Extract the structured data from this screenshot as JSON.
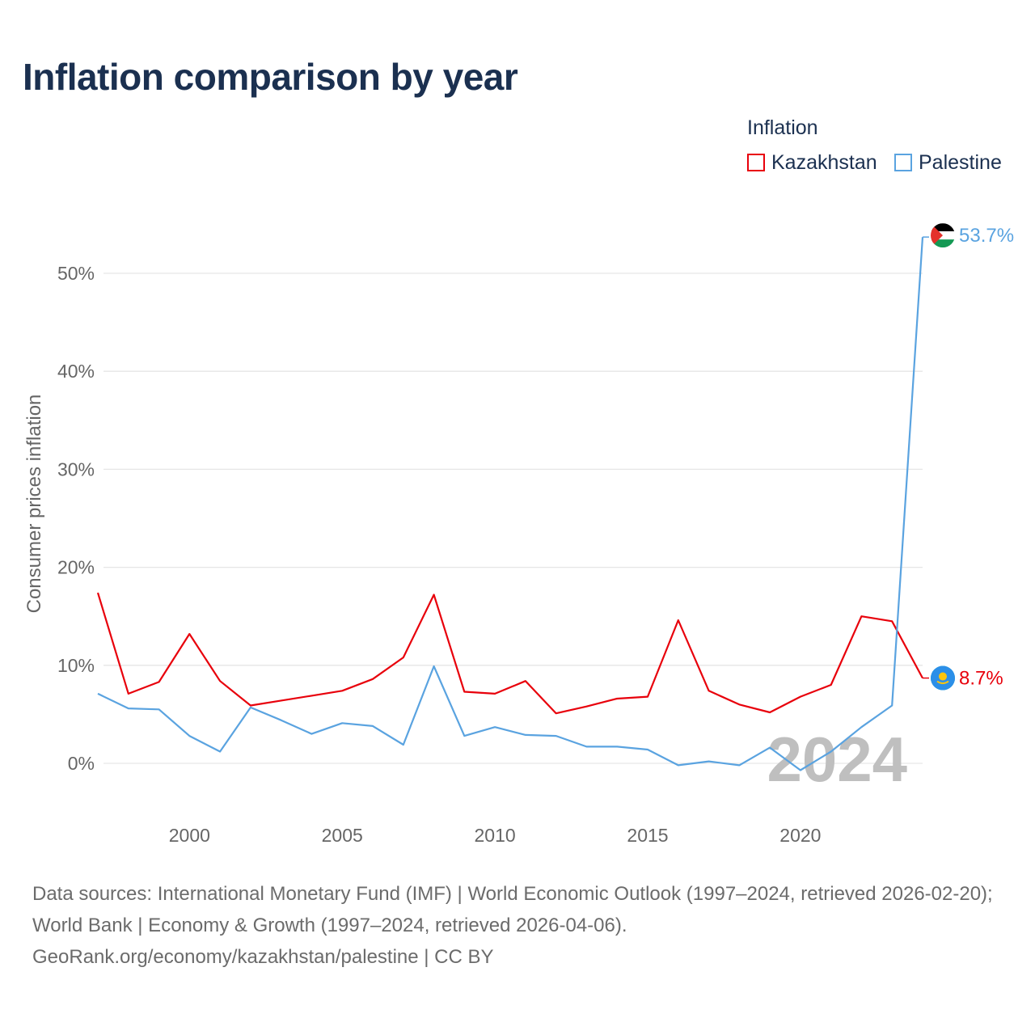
{
  "title": "Inflation comparison by year",
  "legend": {
    "title": "Inflation",
    "items": [
      {
        "name": "Kazakhstan",
        "color": "#e8000b"
      },
      {
        "name": "Palestine",
        "color": "#5aa3e0"
      }
    ]
  },
  "source": {
    "line1": "Data sources: International Monetary Fund (IMF) | World Economic Outlook (1997–2024, retrieved 2026-02-20); World Bank | Economy & Growth (1997–2024, retrieved 2026-04-06).",
    "line2": "GeoRank.org/economy/kazakhstan/palestine | CC BY"
  },
  "chart_data": {
    "type": "line",
    "title": "Inflation comparison by year",
    "ylabel": "Consumer prices inflation",
    "xlabel": "",
    "ylim": [
      -5,
      55
    ],
    "xlim": [
      1997,
      2024
    ],
    "yticks": [
      0,
      10,
      20,
      30,
      40,
      50
    ],
    "ytick_labels": [
      "0%",
      "10%",
      "20%",
      "30%",
      "40%",
      "50%"
    ],
    "xticks": [
      2000,
      2005,
      2010,
      2015,
      2020
    ],
    "xtick_labels": [
      "2000",
      "2005",
      "2010",
      "2015",
      "2020"
    ],
    "grid": true,
    "year_watermark": "2024",
    "x": [
      1997,
      1998,
      1999,
      2000,
      2001,
      2002,
      2003,
      2004,
      2005,
      2006,
      2007,
      2008,
      2009,
      2010,
      2011,
      2012,
      2013,
      2014,
      2015,
      2016,
      2017,
      2018,
      2019,
      2020,
      2021,
      2022,
      2023,
      2024
    ],
    "series": [
      {
        "name": "Kazakhstan",
        "color": "#e8000b",
        "end_label": "8.7%",
        "flag": "kazakhstan-flag",
        "values": [
          17.4,
          7.1,
          8.3,
          13.2,
          8.4,
          5.9,
          6.4,
          6.9,
          7.4,
          8.6,
          10.8,
          17.2,
          7.3,
          7.1,
          8.4,
          5.1,
          5.8,
          6.6,
          6.8,
          14.6,
          7.4,
          6.0,
          5.2,
          6.8,
          8.0,
          15.0,
          14.5,
          8.7
        ]
      },
      {
        "name": "Palestine",
        "color": "#5aa3e0",
        "end_label": "53.7%",
        "flag": "palestine-flag",
        "values": [
          7.1,
          5.6,
          5.5,
          2.8,
          1.2,
          5.7,
          4.4,
          3.0,
          4.1,
          3.8,
          1.9,
          9.9,
          2.8,
          3.7,
          2.9,
          2.8,
          1.7,
          1.7,
          1.4,
          -0.2,
          0.2,
          -0.2,
          1.6,
          -0.7,
          1.2,
          3.7,
          5.9,
          53.7
        ]
      }
    ]
  }
}
